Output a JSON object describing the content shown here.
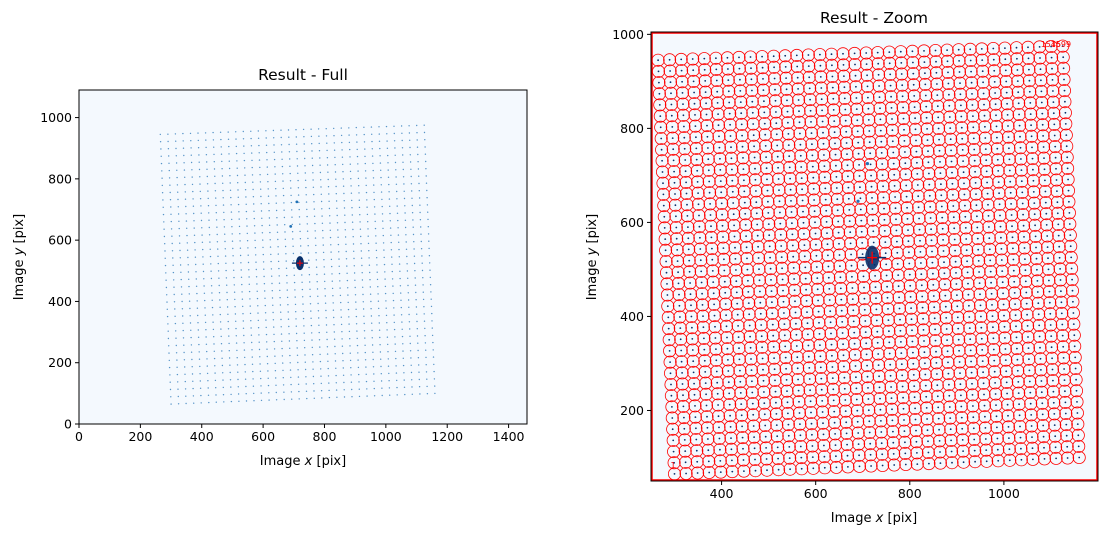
{
  "colors": {
    "overlay": "#ff0000",
    "image_bg": "#f4f9fe",
    "dots": "#2171b5",
    "dark_blob": "#08306b"
  },
  "chart_data": [
    {
      "type": "image",
      "title": "Result - Full",
      "xlabel_prefix": "Image ",
      "xlabel_var": "x",
      "xlabel_suffix": " [pix]",
      "ylabel_prefix": "Image ",
      "ylabel_var": "y",
      "ylabel_suffix": " [pix]",
      "xlim": [
        0,
        1460
      ],
      "ylim": [
        1090,
        0
      ],
      "xticks": [
        0,
        200,
        400,
        600,
        800,
        1000,
        1200,
        1400
      ],
      "yticks": [
        0,
        200,
        400,
        600,
        800,
        1000
      ],
      "colormap": "Blues",
      "overlay_rectangle": {
        "x0": 250,
        "y0": 50,
        "x1": 1200,
        "y1": 1005
      },
      "grid_corners": {
        "top_left": [
          300,
          65
        ],
        "top_right": [
          1160,
          100
        ],
        "bottom_left": [
          265,
          945
        ],
        "bottom_right": [
          1125,
          975
        ]
      },
      "grid_size": [
        36,
        38
      ],
      "bright_spot": [
        720,
        525
      ],
      "extra_spots": [
        [
          690,
          645
        ],
        [
          710,
          725
        ]
      ]
    },
    {
      "type": "image",
      "title": "Result - Zoom",
      "xlabel_prefix": "Image ",
      "xlabel_var": "x",
      "xlabel_suffix": " [pix]",
      "ylabel_prefix": "Image ",
      "ylabel_var": "y",
      "ylabel_suffix": " [pix]",
      "xlim": [
        250,
        1200
      ],
      "ylim": [
        1005,
        50
      ],
      "xticks": [
        400,
        600,
        800,
        1000
      ],
      "yticks": [
        200,
        400,
        600,
        800,
        1000
      ],
      "colormap": "Blues",
      "circle_radius": 13,
      "corner_labels": [
        "1",
        "1545",
        "1599"
      ]
    }
  ]
}
